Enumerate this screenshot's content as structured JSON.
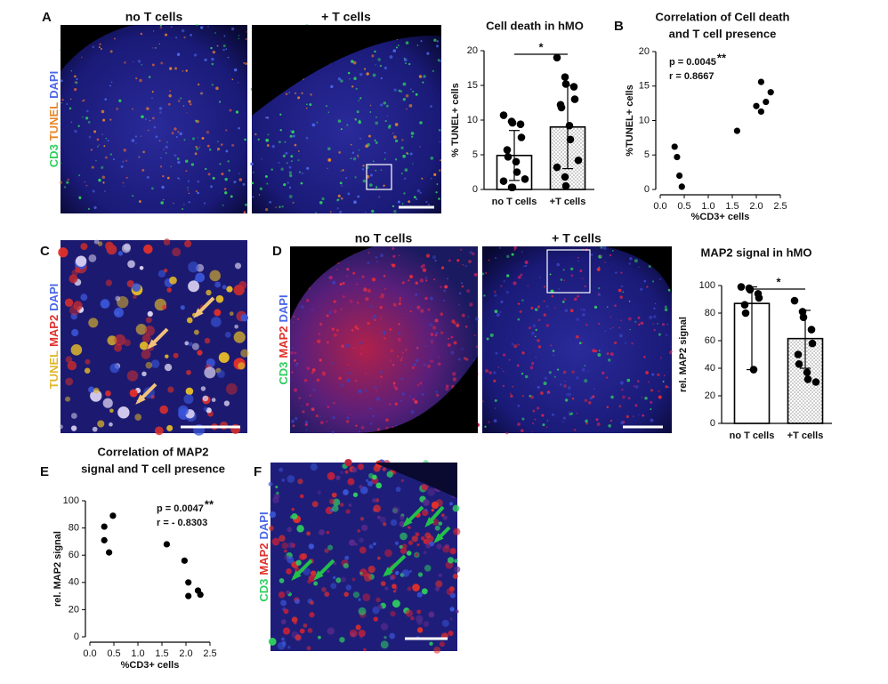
{
  "figure": {
    "letters": [
      "A",
      "B",
      "C",
      "D",
      "E",
      "F"
    ],
    "image_labels": {
      "a_left": "no T cells",
      "a_right": "+ T cells",
      "d_left": "no T cells",
      "d_right": "+ T cells"
    },
    "stains": {
      "a": [
        {
          "text": "CD3",
          "color": "#2fcf5f"
        },
        {
          "text": "TUNEL",
          "color": "#e8862a"
        },
        {
          "text": "DAPI",
          "color": "#4a66e8"
        }
      ],
      "c": [
        {
          "text": "TUNEL",
          "color": "#e0b72a"
        },
        {
          "text": "MAP2",
          "color": "#e0302a"
        },
        {
          "text": "DAPI",
          "color": "#4a66e8"
        }
      ],
      "d": [
        {
          "text": "CD3",
          "color": "#2fcf5f"
        },
        {
          "text": "MAP2",
          "color": "#e0302a"
        },
        {
          "text": "DAPI",
          "color": "#4a66e8"
        }
      ],
      "f": [
        {
          "text": "CD3",
          "color": "#2fcf5f"
        },
        {
          "text": "MAP2",
          "color": "#e0302a"
        },
        {
          "text": "DAPI",
          "color": "#4a66e8"
        }
      ]
    }
  },
  "chart_data": [
    {
      "type": "bar",
      "title": "Cell death in hMO",
      "ylabel": "% TUNEL+ cells",
      "categories": [
        "no T cells",
        "+T cells"
      ],
      "values": [
        4.9,
        9.0
      ],
      "whiskers": [
        [
          1.3,
          8.5
        ],
        [
          3.0,
          15.0
        ]
      ],
      "points": [
        [
          10.7,
          9.8,
          9.6,
          9.4,
          7.5,
          5.7,
          4.7,
          4.0,
          2.5,
          1.5,
          1.2,
          0.3,
          0.3
        ],
        [
          19.0,
          16.2,
          15.2,
          14.8,
          13.0,
          12.2,
          11.8,
          9.2,
          7.2,
          4.2,
          3.2,
          1.8,
          0.5
        ]
      ],
      "bar_patterns": [
        "none",
        "dots"
      ],
      "color": "#000000",
      "significance": "*",
      "ylim": [
        0,
        20
      ],
      "yticks": [
        0,
        5,
        10,
        15,
        20
      ]
    },
    {
      "type": "scatter",
      "title": [
        "Correlation of Cell death",
        "and T cell presence"
      ],
      "xlabel": "%CD3+ cells",
      "ylabel": "%TUNEL+ cells",
      "x": [
        0.3,
        0.35,
        0.4,
        0.45,
        1.6,
        2.0,
        2.1,
        2.1,
        2.2,
        2.3
      ],
      "y": [
        6.2,
        4.7,
        2.0,
        0.4,
        8.5,
        12.1,
        11.3,
        15.6,
        12.7,
        14.1
      ],
      "annotations": [
        "p = 0.0045",
        "**",
        "r = 0.8667"
      ],
      "color": "#000000",
      "xlim": [
        0,
        2.5
      ],
      "xticks": [
        {
          "value": 0,
          "label": "0.0"
        },
        0.5,
        {
          "value": 1,
          "label": "1.0"
        },
        1.5,
        {
          "value": 2,
          "label": "2.0"
        },
        2.5
      ],
      "ylim": [
        0,
        20
      ],
      "yticks": [
        0,
        5,
        10,
        15,
        20
      ]
    },
    {
      "type": "bar",
      "title": "MAP2 signal in hMO",
      "ylabel": "rel. MAP2 signal",
      "categories": [
        "no T cells",
        "+T cells"
      ],
      "values": [
        87,
        61.5
      ],
      "whiskers": [
        [
          39,
          99
        ],
        [
          40,
          82
        ]
      ],
      "points": [
        [
          99,
          98,
          97,
          94,
          91,
          86,
          80,
          39
        ],
        [
          89,
          81,
          77,
          68,
          58,
          50,
          43,
          37,
          32,
          30
        ]
      ],
      "bar_patterns": [
        "none",
        "dots"
      ],
      "color": "#000000",
      "significance": "*",
      "ylim": [
        0,
        100
      ],
      "yticks": [
        0,
        20,
        40,
        60,
        80,
        100
      ]
    },
    {
      "type": "scatter",
      "title": [
        "Correlation of MAP2",
        "signal and T cell presence"
      ],
      "xlabel": "%CD3+ cells",
      "ylabel": "rel. MAP2 signal",
      "x": [
        0.3,
        0.3,
        0.4,
        0.48,
        1.6,
        1.97,
        2.05,
        2.05,
        2.25,
        2.3
      ],
      "y": [
        81,
        71,
        62,
        89,
        68,
        56,
        40,
        30,
        34,
        31
      ],
      "annotations": [
        "p = 0.0047",
        "**",
        "r = - 0.8303"
      ],
      "color": "#000000",
      "xlim": [
        0,
        2.5
      ],
      "xticks": [
        {
          "value": 0,
          "label": "0.0"
        },
        0.5,
        {
          "value": 1,
          "label": "1.0"
        },
        1.5,
        {
          "value": 2,
          "label": "2.0"
        },
        2.5
      ],
      "ylim": [
        0,
        100
      ],
      "yticks": [
        0,
        20,
        40,
        60,
        80,
        100
      ]
    }
  ]
}
